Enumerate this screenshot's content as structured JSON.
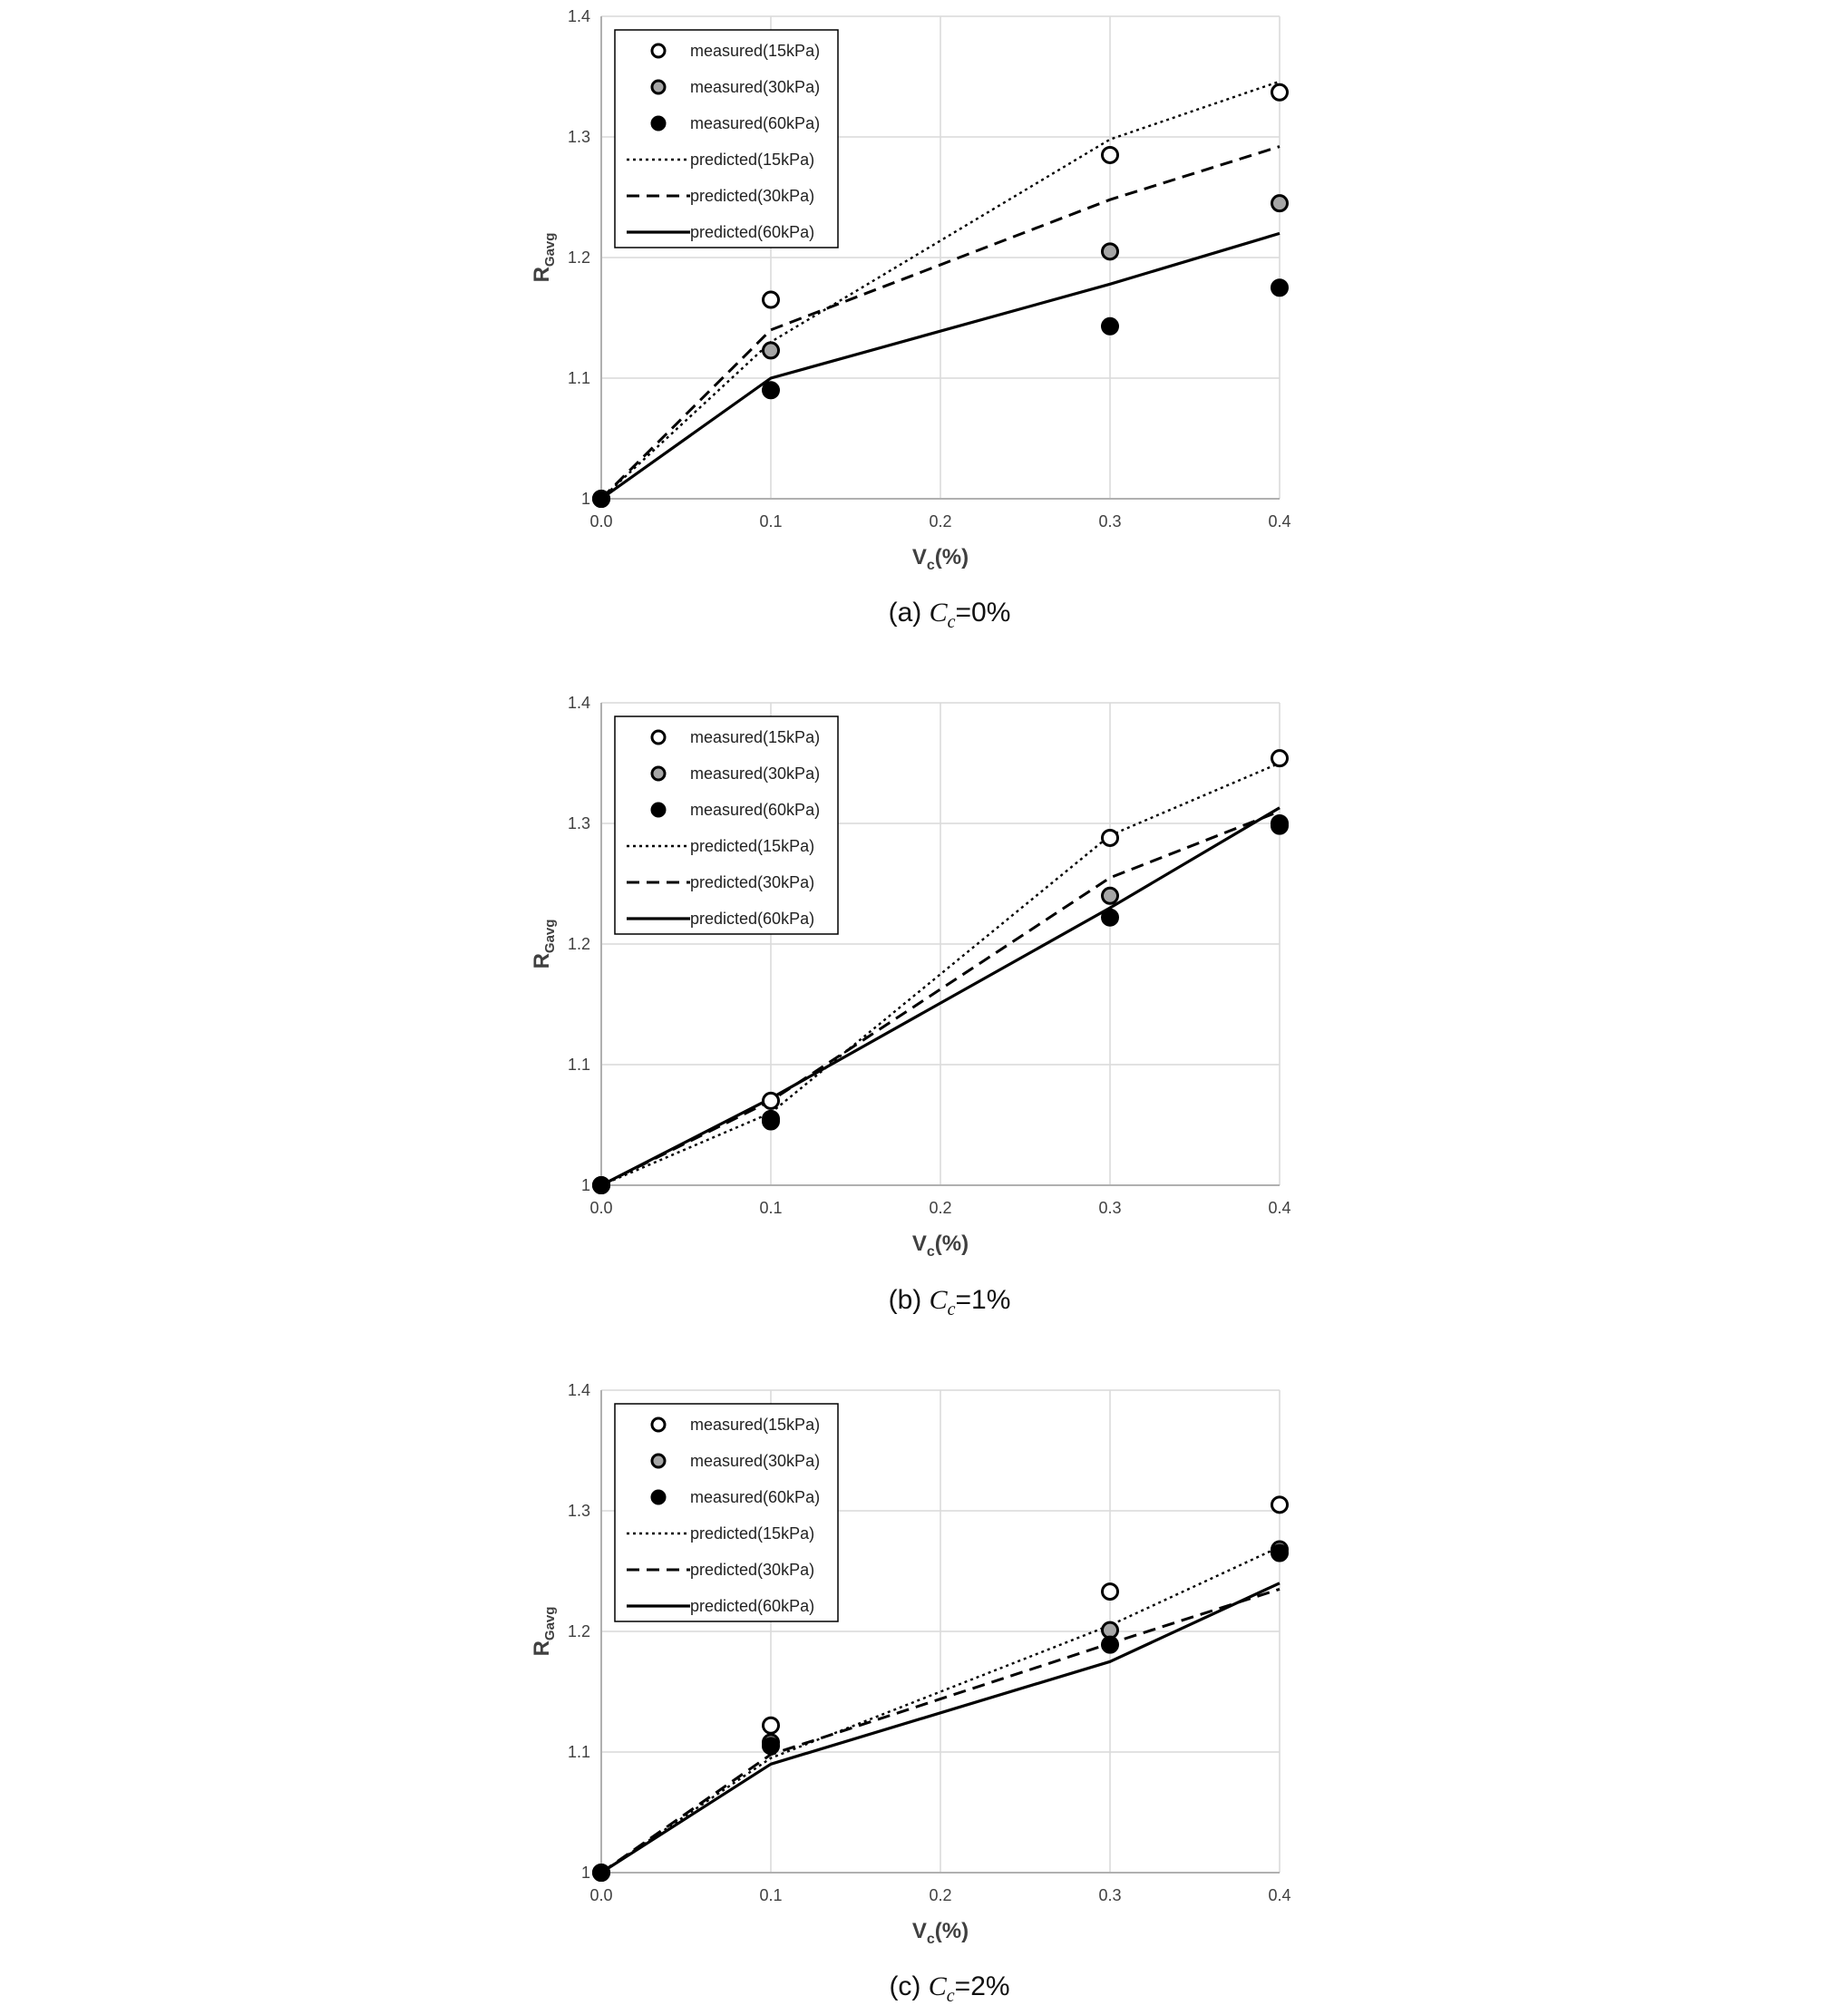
{
  "colors": {
    "grid": "#d9d9d9",
    "axis": "#b0b0b0",
    "open_marker_fill": "#ffffff",
    "gray_marker_fill": "#a6a6a6",
    "black_marker_fill": "#000000",
    "marker_stroke": "#000000",
    "line": "#000000"
  },
  "chart_data": [
    {
      "type": "line",
      "panel": "a",
      "caption": {
        "prefix": "(a) ",
        "var": "C",
        "sub": "c",
        "suffix": "=0%"
      },
      "xlabel": {
        "main": "V",
        "sub": "c",
        "suffix": "(%)"
      },
      "ylabel": {
        "main": "R",
        "sub": "Gavg"
      },
      "x_ticks": [
        0.0,
        0.1,
        0.2,
        0.3,
        0.4
      ],
      "x_tick_labels": [
        "0.0",
        "0.1",
        "0.2",
        "0.3",
        "0.4"
      ],
      "y_ticks": [
        1.0,
        1.1,
        1.2,
        1.3,
        1.4
      ],
      "y_tick_labels": [
        "1",
        "1.1",
        "1.2",
        "1.3",
        "1.4"
      ],
      "xlim": [
        0,
        0.4
      ],
      "ylim": [
        1.0,
        1.4
      ],
      "grid": true,
      "legend": "top-left",
      "series": [
        {
          "name": "measured(15kPa)",
          "kind": "marker",
          "marker": "open",
          "x": [
            0.0,
            0.1,
            0.3,
            0.4
          ],
          "values": [
            1.0,
            1.165,
            1.285,
            1.337
          ]
        },
        {
          "name": "measured(30kPa)",
          "kind": "marker",
          "marker": "gray",
          "x": [
            0.0,
            0.1,
            0.3,
            0.4
          ],
          "values": [
            1.0,
            1.123,
            1.205,
            1.245
          ]
        },
        {
          "name": "measured(60kPa)",
          "kind": "marker",
          "marker": "black",
          "x": [
            0.0,
            0.1,
            0.3,
            0.4
          ],
          "values": [
            1.0,
            1.09,
            1.143,
            1.175
          ]
        },
        {
          "name": "predicted(15kPa)",
          "kind": "line",
          "dash": "dotted",
          "x": [
            0.0,
            0.1,
            0.3,
            0.4
          ],
          "values": [
            1.0,
            1.13,
            1.298,
            1.346
          ]
        },
        {
          "name": "predicted(30kPa)",
          "kind": "line",
          "dash": "dashed",
          "x": [
            0.0,
            0.1,
            0.3,
            0.4
          ],
          "values": [
            1.0,
            1.14,
            1.248,
            1.292
          ]
        },
        {
          "name": "predicted(60kPa)",
          "kind": "line",
          "dash": "solid",
          "x": [
            0.0,
            0.1,
            0.3,
            0.4
          ],
          "values": [
            1.0,
            1.1,
            1.178,
            1.22
          ]
        }
      ]
    },
    {
      "type": "line",
      "panel": "b",
      "caption": {
        "prefix": "(b) ",
        "var": "C",
        "sub": "c",
        "suffix": "=1%"
      },
      "xlabel": {
        "main": "V",
        "sub": "c",
        "suffix": "(%)"
      },
      "ylabel": {
        "main": "R",
        "sub": "Gavg"
      },
      "x_ticks": [
        0.0,
        0.1,
        0.2,
        0.3,
        0.4
      ],
      "x_tick_labels": [
        "0.0",
        "0.1",
        "0.2",
        "0.3",
        "0.4"
      ],
      "y_ticks": [
        1.0,
        1.1,
        1.2,
        1.3,
        1.4
      ],
      "y_tick_labels": [
        "1",
        "1.1",
        "1.2",
        "1.3",
        "1.4"
      ],
      "xlim": [
        0,
        0.4
      ],
      "ylim": [
        1.0,
        1.4
      ],
      "grid": true,
      "legend": "top-left",
      "series": [
        {
          "name": "measured(15kPa)",
          "kind": "marker",
          "marker": "open",
          "x": [
            0.0,
            0.1,
            0.3,
            0.4
          ],
          "values": [
            1.0,
            1.07,
            1.288,
            1.354
          ]
        },
        {
          "name": "measured(30kPa)",
          "kind": "marker",
          "marker": "gray",
          "x": [
            0.0,
            0.1,
            0.3,
            0.4
          ],
          "values": [
            1.0,
            1.055,
            1.24,
            1.3
          ]
        },
        {
          "name": "measured(60kPa)",
          "kind": "marker",
          "marker": "black",
          "x": [
            0.0,
            0.1,
            0.3,
            0.4
          ],
          "values": [
            1.0,
            1.053,
            1.222,
            1.298
          ]
        },
        {
          "name": "predicted(15kPa)",
          "kind": "line",
          "dash": "dotted",
          "x": [
            0.0,
            0.1,
            0.3,
            0.4
          ],
          "values": [
            1.0,
            1.06,
            1.29,
            1.35
          ]
        },
        {
          "name": "predicted(30kPa)",
          "kind": "line",
          "dash": "dashed",
          "x": [
            0.0,
            0.1,
            0.3,
            0.4
          ],
          "values": [
            1.0,
            1.07,
            1.255,
            1.31
          ]
        },
        {
          "name": "predicted(60kPa)",
          "kind": "line",
          "dash": "solid",
          "x": [
            0.0,
            0.1,
            0.3,
            0.4
          ],
          "values": [
            1.0,
            1.072,
            1.23,
            1.313
          ]
        }
      ]
    },
    {
      "type": "line",
      "panel": "c",
      "caption": {
        "prefix": "(c) ",
        "var": "C",
        "sub": "c",
        "suffix": "=2%"
      },
      "xlabel": {
        "main": "V",
        "sub": "c",
        "suffix": "(%)"
      },
      "ylabel": {
        "main": "R",
        "sub": "Gavg"
      },
      "x_ticks": [
        0.0,
        0.1,
        0.2,
        0.3,
        0.4
      ],
      "x_tick_labels": [
        "0.0",
        "0.1",
        "0.2",
        "0.3",
        "0.4"
      ],
      "y_ticks": [
        1.0,
        1.1,
        1.2,
        1.3,
        1.4
      ],
      "y_tick_labels": [
        "1",
        "1.1",
        "1.2",
        "1.3",
        "1.4"
      ],
      "xlim": [
        0,
        0.4
      ],
      "ylim": [
        1.0,
        1.4
      ],
      "grid": true,
      "legend": "top-left",
      "series": [
        {
          "name": "measured(15kPa)",
          "kind": "marker",
          "marker": "open",
          "x": [
            0.0,
            0.1,
            0.3,
            0.4
          ],
          "values": [
            1.0,
            1.122,
            1.233,
            1.305
          ]
        },
        {
          "name": "measured(30kPa)",
          "kind": "marker",
          "marker": "gray",
          "x": [
            0.0,
            0.1,
            0.3,
            0.4
          ],
          "values": [
            1.0,
            1.108,
            1.201,
            1.268
          ]
        },
        {
          "name": "measured(60kPa)",
          "kind": "marker",
          "marker": "black",
          "x": [
            0.0,
            0.1,
            0.3,
            0.4
          ],
          "values": [
            1.0,
            1.105,
            1.189,
            1.265
          ]
        },
        {
          "name": "predicted(15kPa)",
          "kind": "line",
          "dash": "dotted",
          "x": [
            0.0,
            0.1,
            0.3,
            0.4
          ],
          "values": [
            1.0,
            1.095,
            1.205,
            1.27
          ]
        },
        {
          "name": "predicted(30kPa)",
          "kind": "line",
          "dash": "dashed",
          "x": [
            0.0,
            0.1,
            0.3,
            0.4
          ],
          "values": [
            1.0,
            1.098,
            1.19,
            1.235
          ]
        },
        {
          "name": "predicted(60kPa)",
          "kind": "line",
          "dash": "solid",
          "x": [
            0.0,
            0.1,
            0.3,
            0.4
          ],
          "values": [
            1.0,
            1.09,
            1.175,
            1.24
          ]
        }
      ]
    }
  ]
}
